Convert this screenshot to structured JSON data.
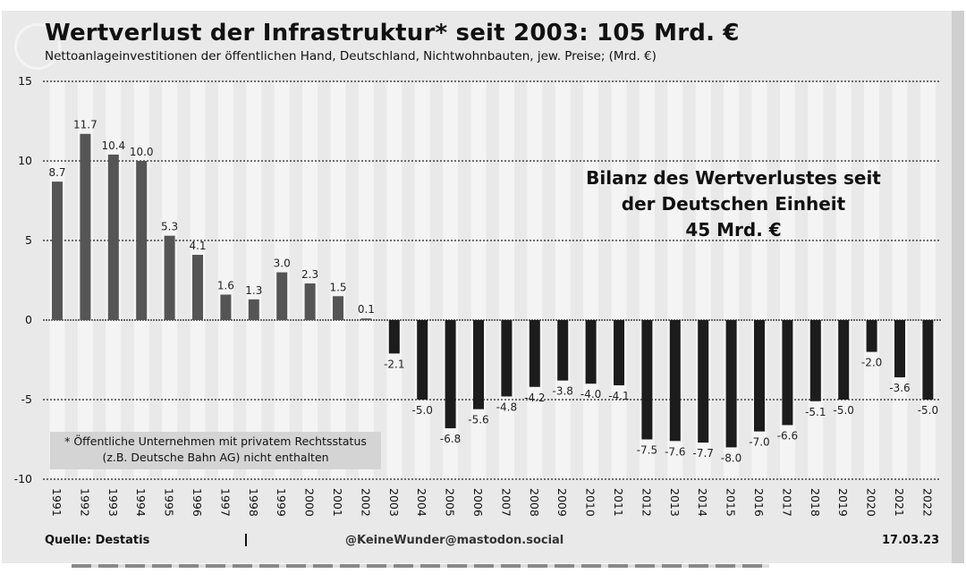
{
  "header": {
    "title": "Wertverlust der Infrastruktur* seit 2003: 105 Mrd. €",
    "subtitle": "Nettoanlageinvestitionen der öffentlichen Hand, Deutschland, Nichtwohnbauten, jew. Preise; (Mrd. €)"
  },
  "annotation": {
    "line1": "Bilanz des Wertverlustes seit",
    "line2": "der Deutschen Einheit",
    "line3": "45 Mrd. €"
  },
  "note": {
    "line1": "* Öffentliche Unternehmen mit privatem Rechtsstatus",
    "line2": "(z.B. Deutsche Bahn AG) nicht enthalten"
  },
  "footer": {
    "source": "Quelle: Destatis",
    "handle": "@KeineWunder@mastodon.social",
    "date": "17.03.23"
  },
  "colors": {
    "positive_bar": "#555555",
    "negative_bar": "#1c1c1c",
    "stripe": "#f4f4f4",
    "gridline": "#222222"
  },
  "chart_data": {
    "type": "bar",
    "title": "Wertverlust der Infrastruktur* seit 2003: 105 Mrd. €",
    "ylabel": "Mrd. €",
    "xlabel": "",
    "ylim": [
      -10,
      15
    ],
    "yticks": [
      15,
      10,
      5,
      0,
      -5,
      -10
    ],
    "categories": [
      "1991",
      "1992",
      "1993",
      "1994",
      "1995",
      "1996",
      "1997",
      "1998",
      "1999",
      "2000",
      "2001",
      "2002",
      "2003",
      "2004",
      "2005",
      "2006",
      "2007",
      "2008",
      "2009",
      "2010",
      "2011",
      "2012",
      "2013",
      "2014",
      "2015",
      "2016",
      "2017",
      "2018",
      "2019",
      "2020",
      "2021",
      "2022"
    ],
    "values": [
      8.7,
      11.7,
      10.4,
      10.0,
      5.3,
      4.1,
      1.6,
      1.3,
      3.0,
      2.3,
      1.5,
      0.1,
      -2.1,
      -5.0,
      -6.8,
      -5.6,
      -4.8,
      -4.2,
      -3.8,
      -4.0,
      -4.1,
      -7.5,
      -7.6,
      -7.7,
      -8.0,
      -7.0,
      -6.6,
      -5.1,
      -5.0,
      -2.0,
      -3.6,
      -5.0
    ],
    "labels": [
      "8.7",
      "11.7",
      "10.4",
      "10.0",
      "5.3",
      "4.1",
      "1.6",
      "1.3",
      "3.0",
      "2.3",
      "1.5",
      "0.1",
      "-2.1",
      "-5.0",
      "-6.8",
      "-5.6",
      "-4.8",
      "-4.2",
      "-3.8",
      "-4.0",
      "-4.1",
      "-7.5",
      "-7.6",
      "-7.7",
      "-8.0",
      "-7.0",
      "-6.6",
      "-5.1",
      "-5.0",
      "-2.0",
      "-3.6",
      "-5.0"
    ],
    "grid": true,
    "legend": "none"
  }
}
